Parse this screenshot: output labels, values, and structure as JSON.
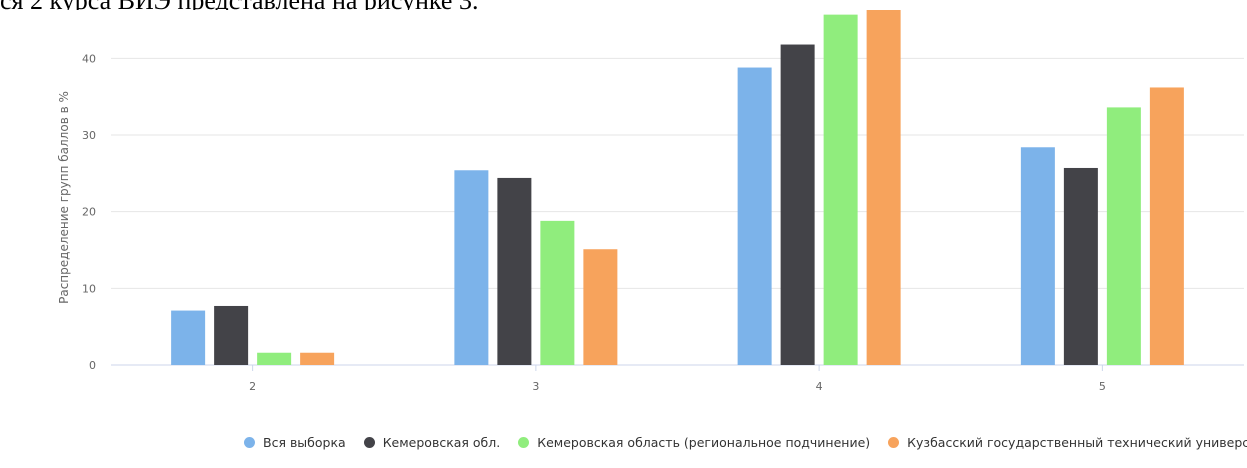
{
  "header_text": "ся 2 курса ВИЭ представлена на рисунке 3.",
  "colors": {
    "series_1": "#7cb3ea",
    "series_2": "#434348",
    "series_3": "#90ed7d",
    "series_4": "#f7a35c",
    "grid": "#e6e6e6",
    "axis": "#ccd6eb",
    "text": "#666666"
  },
  "chart_data": {
    "type": "bar",
    "title": "",
    "xlabel": "",
    "ylabel": "Распределение групп баллов в %",
    "categories": [
      "2",
      "3",
      "4",
      "5"
    ],
    "ylim": [
      0,
      45
    ],
    "yticks": [
      "0",
      "10",
      "20",
      "30",
      "40"
    ],
    "grid": true,
    "legend_position": "bottom-center",
    "series": [
      {
        "name": "Вся выборка",
        "values": [
          7.1,
          25.4,
          38.8,
          28.4
        ]
      },
      {
        "name": "Кемеровская обл.",
        "values": [
          7.7,
          24.4,
          41.8,
          25.7
        ]
      },
      {
        "name": "Кемеровская область (региональное подчинение)",
        "values": [
          1.6,
          18.8,
          45.7,
          33.6
        ]
      },
      {
        "name": "Кузбасский государственный технический университет",
        "values": [
          1.6,
          15.1,
          46.8,
          36.2
        ]
      }
    ]
  }
}
